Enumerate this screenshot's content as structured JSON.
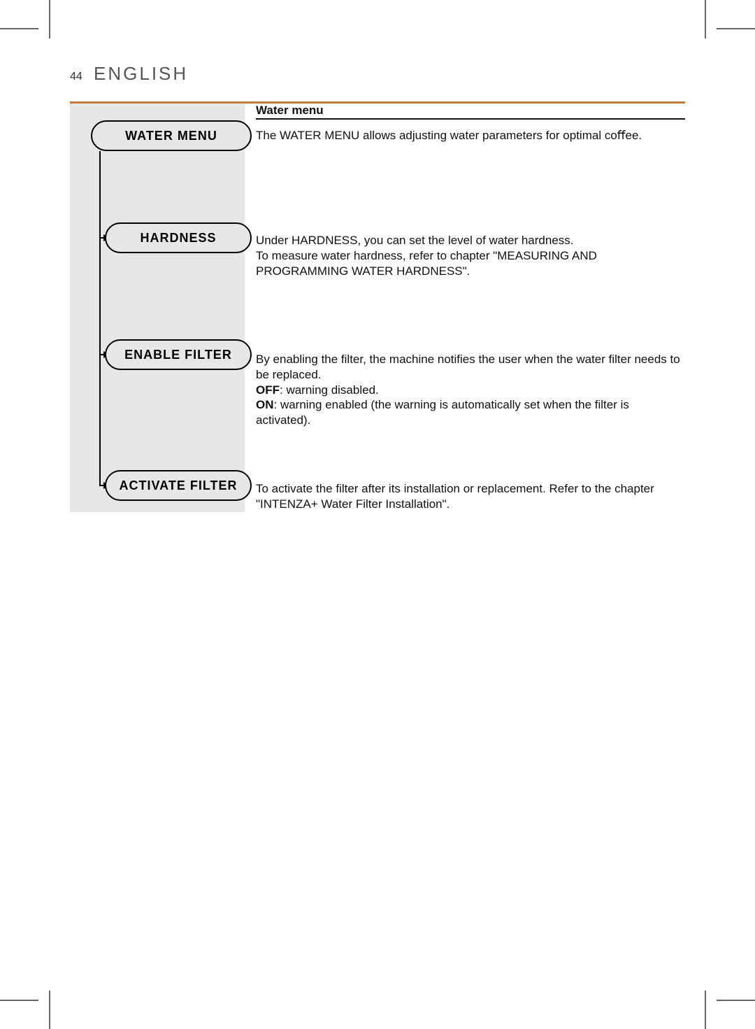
{
  "colors": {
    "accent_rule": "#c97a3a",
    "sidebar_bg": "#e7e7e7",
    "text": "#111111",
    "header_gray": "#555555",
    "crop": "#666666",
    "black": "#000000",
    "page_bg": "#ffffff"
  },
  "typography": {
    "body_fontsize_pt": 12,
    "header_fontsize_pt": 20,
    "pill_fontsize_pt": 14
  },
  "header": {
    "page_number": "44",
    "language": "ENGLISH"
  },
  "section": {
    "title": "Water menu",
    "intro": "The WATER MENU allows adjusting water parameters for optimal coﬀee."
  },
  "menu": {
    "root_label": "WATER MENU",
    "items": [
      {
        "label": "HARDNESS",
        "desc_line1": "Under HARDNESS, you can set the level of water hardness.",
        "desc_line2": "To measure water hardness, refer to chapter \"MEASURING AND PROGRAMMING WATER HARDNESS\"."
      },
      {
        "label": "ENABLE FILTER",
        "desc_line1": "By enabling the ﬁlter, the machine notiﬁes the user when the water ﬁlter needs to be replaced.",
        "off_label": "OFF",
        "off_text": ": warning disabled.",
        "on_label": "ON",
        "on_text": ": warning enabled (the warning is automatically set when the ﬁlter is activated)."
      },
      {
        "label": "ACTIVATE FILTER",
        "desc": "To activate the ﬁlter after its installation or replacement. Refer to the chapter \"INTENZA+ Water Filter Installation\"."
      }
    ]
  }
}
